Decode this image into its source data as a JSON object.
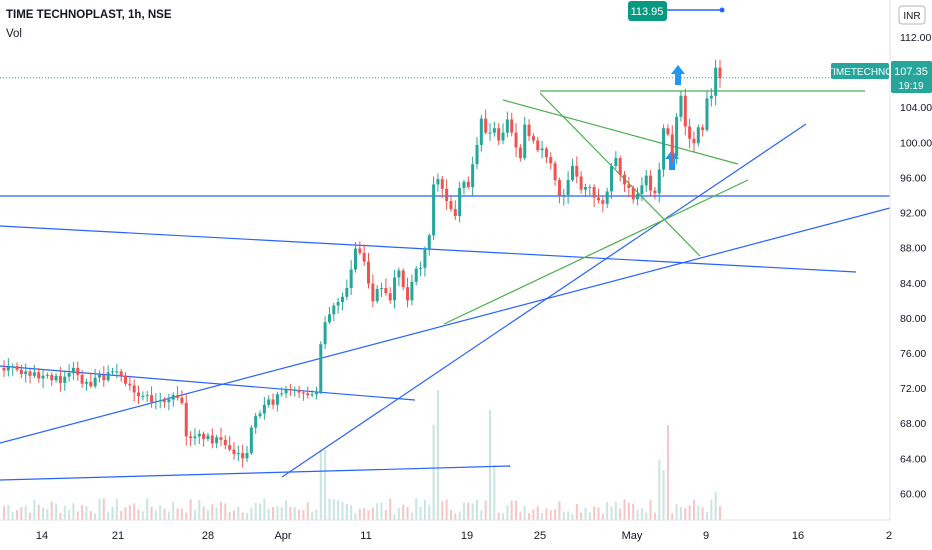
{
  "header": {
    "title": "TIME TECHNOPLAST, 1h, NSE",
    "volume_label": "Vol"
  },
  "colors": {
    "up": "#26a69a",
    "down": "#ef5350",
    "blue_line": "#2962ff",
    "green_line": "#4caf50",
    "accent": "#26a69a"
  },
  "chart_data": {
    "type": "candlestick",
    "title": "TIME TECHNOPLAST, 1h, NSE",
    "currency": "INR",
    "ylim": [
      58.0,
      114.5
    ],
    "x_ticks": [
      "14",
      "21",
      "28",
      "Apr",
      "11",
      "19",
      "25",
      "May",
      "9",
      "16",
      "2"
    ],
    "y_ticks": [
      "60.00",
      "64.00",
      "68.00",
      "72.00",
      "76.00",
      "80.00",
      "84.00",
      "88.00",
      "92.00",
      "96.00",
      "100.00",
      "104.00",
      "108.00",
      "112.00"
    ],
    "last_price": "107.35",
    "countdown": "19:19",
    "symbol_label": "TIMETECHNO",
    "measure_value": "113.95",
    "close_series": [
      74.0,
      74.4,
      74.5,
      74.1,
      73.6,
      73.9,
      73.4,
      73.8,
      73.1,
      73.4,
      73.5,
      72.9,
      73.4,
      72.6,
      73.3,
      73.7,
      74.3,
      73.5,
      72.5,
      72.7,
      72.2,
      73.2,
      73.5,
      72.9,
      73.8,
      73.9,
      73.9,
      73.4,
      72.5,
      72.3,
      71.5,
      71.1,
      71.1,
      71.2,
      70.4,
      70.5,
      70.6,
      70.4,
      70.7,
      71.2,
      70.9,
      70.3,
      66.5,
      66.3,
      66.5,
      66.8,
      66.2,
      66.6,
      65.7,
      66.4,
      66.1,
      65.5,
      65.0,
      64.5,
      64.6,
      64.0,
      64.6,
      67.5,
      68.8,
      69.1,
      70.1,
      70.7,
      70.1,
      71.3,
      71.4,
      71.9,
      71.8,
      71.8,
      71.5,
      71.4,
      71.2,
      71.3,
      71.6,
      77.0,
      79.5,
      80.4,
      81.4,
      81.8,
      82.4,
      83.4,
      85.5,
      87.9,
      87.4,
      86.4,
      83.9,
      81.9,
      83.3,
      83.4,
      82.8,
      82.0,
      84.6,
      85.4,
      83.5,
      82.0,
      84.1,
      85.6,
      85.7,
      87.9,
      89.4,
      95.2,
      95.8,
      94.7,
      93.3,
      92.4,
      91.6,
      94.8,
      95.5,
      94.9,
      97.5,
      99.7,
      102.7,
      101.1,
      101.1,
      101.6,
      100.2,
      101.1,
      102.6,
      101.1,
      99.4,
      98.2,
      102.0,
      100.7,
      100.2,
      99.1,
      99.3,
      98.3,
      97.6,
      95.7,
      93.9,
      94.0,
      95.7,
      97.3,
      96.1,
      94.6,
      94.9,
      94.9,
      93.7,
      93.4,
      93.0,
      94.4,
      97.3,
      98.2,
      96.3,
      95.2,
      94.8,
      93.5,
      94.1,
      95.1,
      96.2,
      94.5,
      94.2,
      96.9,
      101.6,
      100.9,
      98.4,
      102.9,
      105.3,
      101.8,
      100.4,
      99.9,
      101.7,
      101.4,
      105.0,
      105.3,
      108.5,
      107.3
    ],
    "volume_description": "volume histogram bars along the bottom"
  }
}
